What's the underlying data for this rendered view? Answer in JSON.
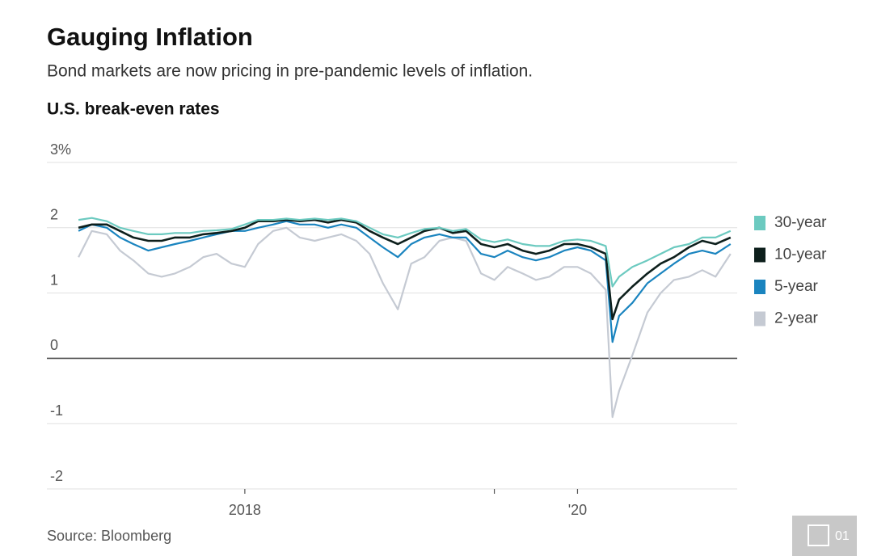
{
  "chart_data": {
    "type": "line",
    "title": "Gauging Inflation",
    "subtitle": "Bond markets are now pricing in pre-pandemic levels of inflation.",
    "y_label": "U.S. break-even rates",
    "source": "Source: Bloomberg",
    "x": [
      2017,
      2017.08,
      2017.17,
      2017.25,
      2017.33,
      2017.42,
      2017.5,
      2017.58,
      2017.67,
      2017.75,
      2017.83,
      2017.92,
      2018,
      2018.08,
      2018.17,
      2018.25,
      2018.33,
      2018.42,
      2018.5,
      2018.58,
      2018.67,
      2018.75,
      2018.83,
      2018.92,
      2019,
      2019.08,
      2019.17,
      2019.25,
      2019.33,
      2019.42,
      2019.5,
      2019.58,
      2019.67,
      2019.75,
      2019.83,
      2019.92,
      2020,
      2020.08,
      2020.17,
      2020.21,
      2020.25,
      2020.33,
      2020.42,
      2020.5,
      2020.58,
      2020.67,
      2020.75,
      2020.83,
      2020.92
    ],
    "series": [
      {
        "name": "30-year",
        "color": "#6ccac0",
        "values": [
          2.12,
          2.15,
          2.1,
          2.0,
          1.95,
          1.9,
          1.9,
          1.92,
          1.92,
          1.95,
          1.96,
          1.98,
          2.05,
          2.12,
          2.12,
          2.14,
          2.12,
          2.14,
          2.12,
          2.14,
          2.1,
          2.0,
          1.9,
          1.85,
          1.92,
          1.98,
          2.0,
          1.95,
          1.98,
          1.82,
          1.78,
          1.82,
          1.75,
          1.72,
          1.72,
          1.8,
          1.82,
          1.8,
          1.72,
          1.1,
          1.25,
          1.4,
          1.5,
          1.6,
          1.7,
          1.75,
          1.85,
          1.85,
          1.95
        ]
      },
      {
        "name": "10-year",
        "color": "#0d1f1c",
        "values": [
          2.0,
          2.05,
          2.05,
          1.95,
          1.85,
          1.8,
          1.8,
          1.85,
          1.85,
          1.9,
          1.92,
          1.95,
          2.0,
          2.1,
          2.1,
          2.12,
          2.1,
          2.12,
          2.08,
          2.12,
          2.08,
          1.95,
          1.85,
          1.75,
          1.85,
          1.95,
          2.0,
          1.92,
          1.95,
          1.75,
          1.7,
          1.75,
          1.65,
          1.6,
          1.65,
          1.75,
          1.75,
          1.7,
          1.6,
          0.6,
          0.9,
          1.1,
          1.3,
          1.45,
          1.55,
          1.7,
          1.8,
          1.75,
          1.85
        ]
      },
      {
        "name": "5-year",
        "color": "#1a84bf",
        "values": [
          1.95,
          2.05,
          2.0,
          1.85,
          1.75,
          1.65,
          1.7,
          1.75,
          1.8,
          1.85,
          1.9,
          1.95,
          1.95,
          2.0,
          2.05,
          2.1,
          2.05,
          2.05,
          2.0,
          2.05,
          2.0,
          1.85,
          1.7,
          1.55,
          1.75,
          1.85,
          1.9,
          1.85,
          1.85,
          1.6,
          1.55,
          1.65,
          1.55,
          1.5,
          1.55,
          1.65,
          1.7,
          1.65,
          1.5,
          0.25,
          0.65,
          0.85,
          1.15,
          1.3,
          1.45,
          1.6,
          1.65,
          1.6,
          1.75
        ]
      },
      {
        "name": "2-year",
        "color": "#c5cad3",
        "values": [
          1.55,
          1.95,
          1.9,
          1.65,
          1.5,
          1.3,
          1.25,
          1.3,
          1.4,
          1.55,
          1.6,
          1.45,
          1.4,
          1.75,
          1.95,
          2.0,
          1.85,
          1.8,
          1.85,
          1.9,
          1.8,
          1.6,
          1.15,
          0.75,
          1.45,
          1.55,
          1.8,
          1.85,
          1.8,
          1.3,
          1.2,
          1.4,
          1.3,
          1.2,
          1.25,
          1.4,
          1.4,
          1.3,
          1.05,
          -0.9,
          -0.5,
          0.05,
          0.7,
          1.0,
          1.2,
          1.25,
          1.35,
          1.25,
          1.6
        ]
      }
    ],
    "xlim": [
      2016.81,
      2020.96
    ],
    "xticks": [
      2018,
      {
        "value": 2019.5,
        "label": null
      },
      {
        "value": 2020,
        "label": "'20"
      }
    ],
    "ylim": [
      -2,
      3
    ],
    "yticks": [
      {
        "value": 3,
        "label": "3%"
      },
      2,
      1,
      0,
      -1,
      -2
    ],
    "grid": true
  },
  "page_badge": "01"
}
